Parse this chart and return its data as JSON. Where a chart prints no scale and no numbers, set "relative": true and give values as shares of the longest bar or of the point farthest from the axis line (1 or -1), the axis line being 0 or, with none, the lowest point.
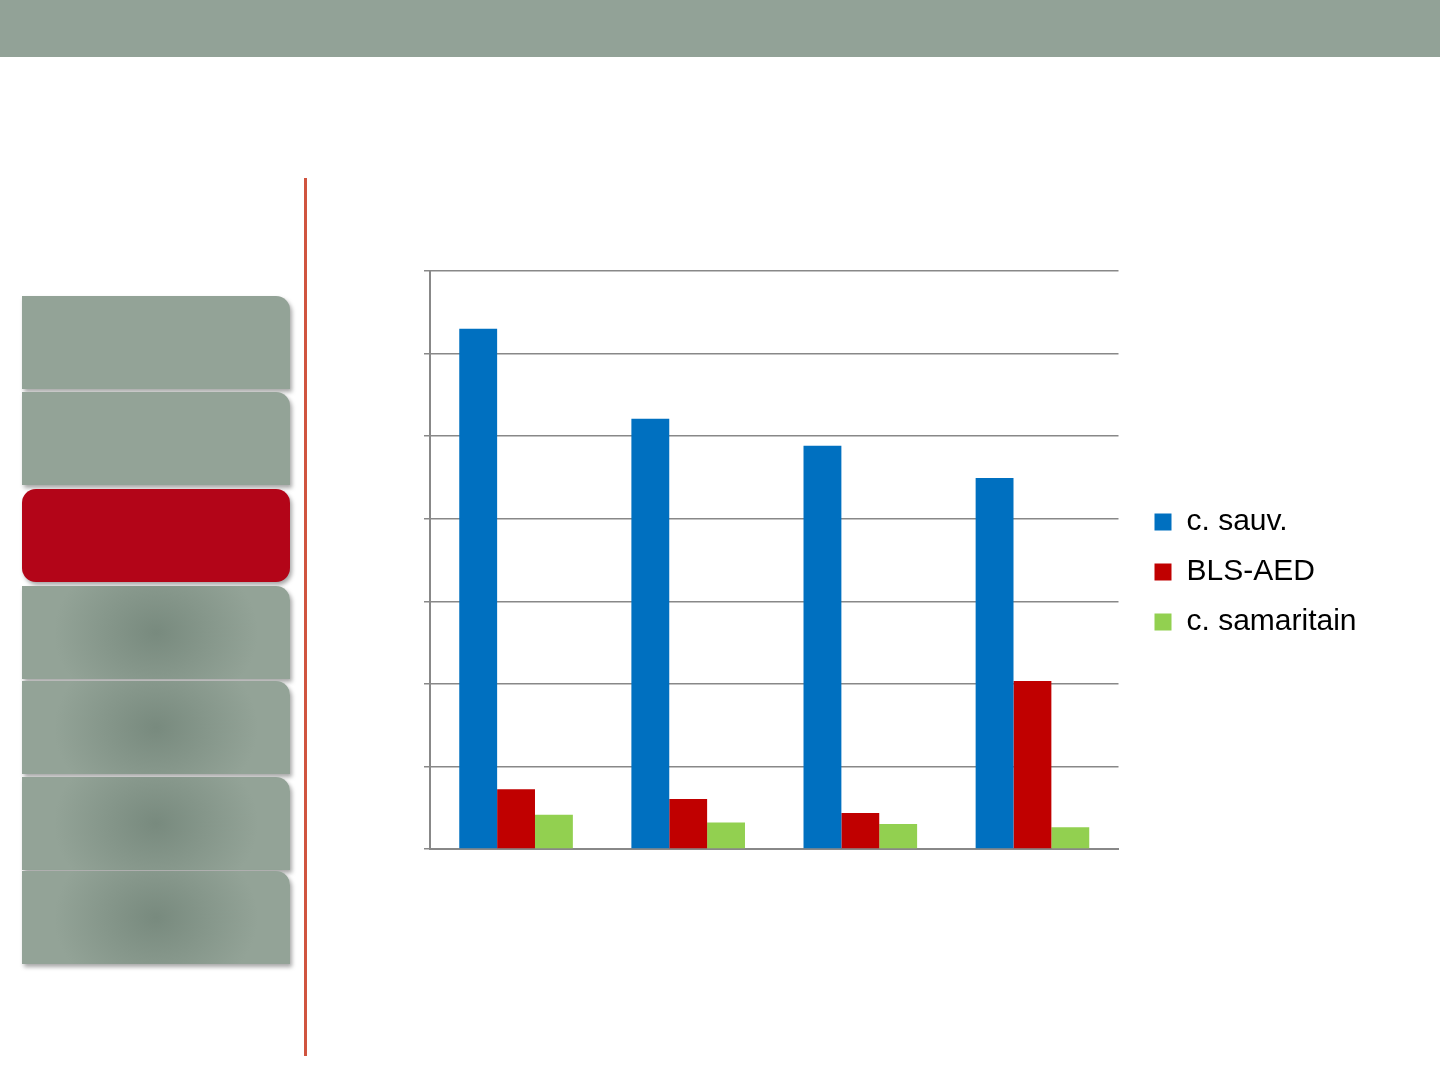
{
  "chart_data": {
    "type": "bar",
    "relative": true,
    "categories": [
      null,
      null,
      null,
      null
    ],
    "series": [
      {
        "name": "c. sauv.",
        "color": "#0070c0",
        "values": [
          1,
          0.827,
          0.775,
          0.713
        ]
      },
      {
        "name": "BLS-AED",
        "color": "#c00000",
        "values": [
          0.115,
          0.096,
          0.069,
          0.323
        ]
      },
      {
        "name": "c. samaritain",
        "color": "#92d050",
        "values": [
          0.066,
          0.051,
          0.048,
          0.042
        ]
      }
    ],
    "grid": "y",
    "legend": "right"
  }
}
